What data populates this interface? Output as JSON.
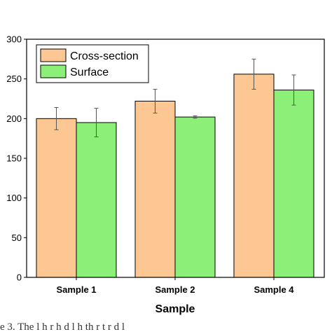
{
  "chart_data": {
    "type": "bar",
    "categories": [
      "Sample 1",
      "Sample 2",
      "Sample 4"
    ],
    "series": [
      {
        "name": "Cross-section",
        "values": [
          200,
          222,
          256
        ],
        "errors": [
          14,
          15,
          19
        ],
        "color": "#FCC792"
      },
      {
        "name": "Surface",
        "values": [
          195,
          202,
          236
        ],
        "errors": [
          18,
          1.5,
          19
        ],
        "color": "#8CF078"
      }
    ],
    "title": "",
    "xlabel": "Sample",
    "ylabel": "",
    "ylim": [
      0,
      300
    ],
    "yticks": [
      0,
      50,
      100,
      150,
      200,
      250,
      300
    ],
    "grid": false,
    "legend_position": "top-left"
  },
  "caption_fragment": "e 3. The l    h    r   h    d    l  h    th    r  t   r            d     l"
}
